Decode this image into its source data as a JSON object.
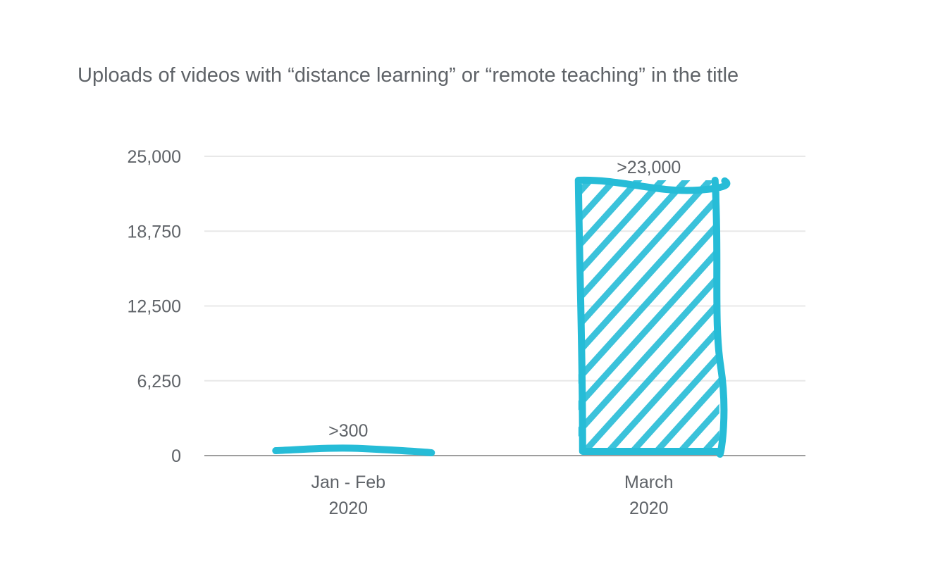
{
  "chart_data": {
    "type": "bar",
    "title": "Uploads of videos with “distance learning” or “remote teaching” in the title",
    "categories": [
      [
        "Jan - Feb",
        "2020"
      ],
      [
        "March",
        "2020"
      ]
    ],
    "values": [
      300,
      23000
    ],
    "data_labels": [
      ">300",
      ">23,000"
    ],
    "ylim": [
      0,
      25000
    ],
    "yticks": [
      0,
      6250,
      12500,
      18750,
      25000
    ],
    "ytick_labels": [
      "0",
      "6,250",
      "12,500",
      "18,750",
      "25,000"
    ],
    "grid": true,
    "style": "hand-drawn hatched bars",
    "colors": {
      "bar": "#26bcd7",
      "text": "#5f6368",
      "grid": "#e8e8e8",
      "axis": "#9e9e9e"
    }
  }
}
